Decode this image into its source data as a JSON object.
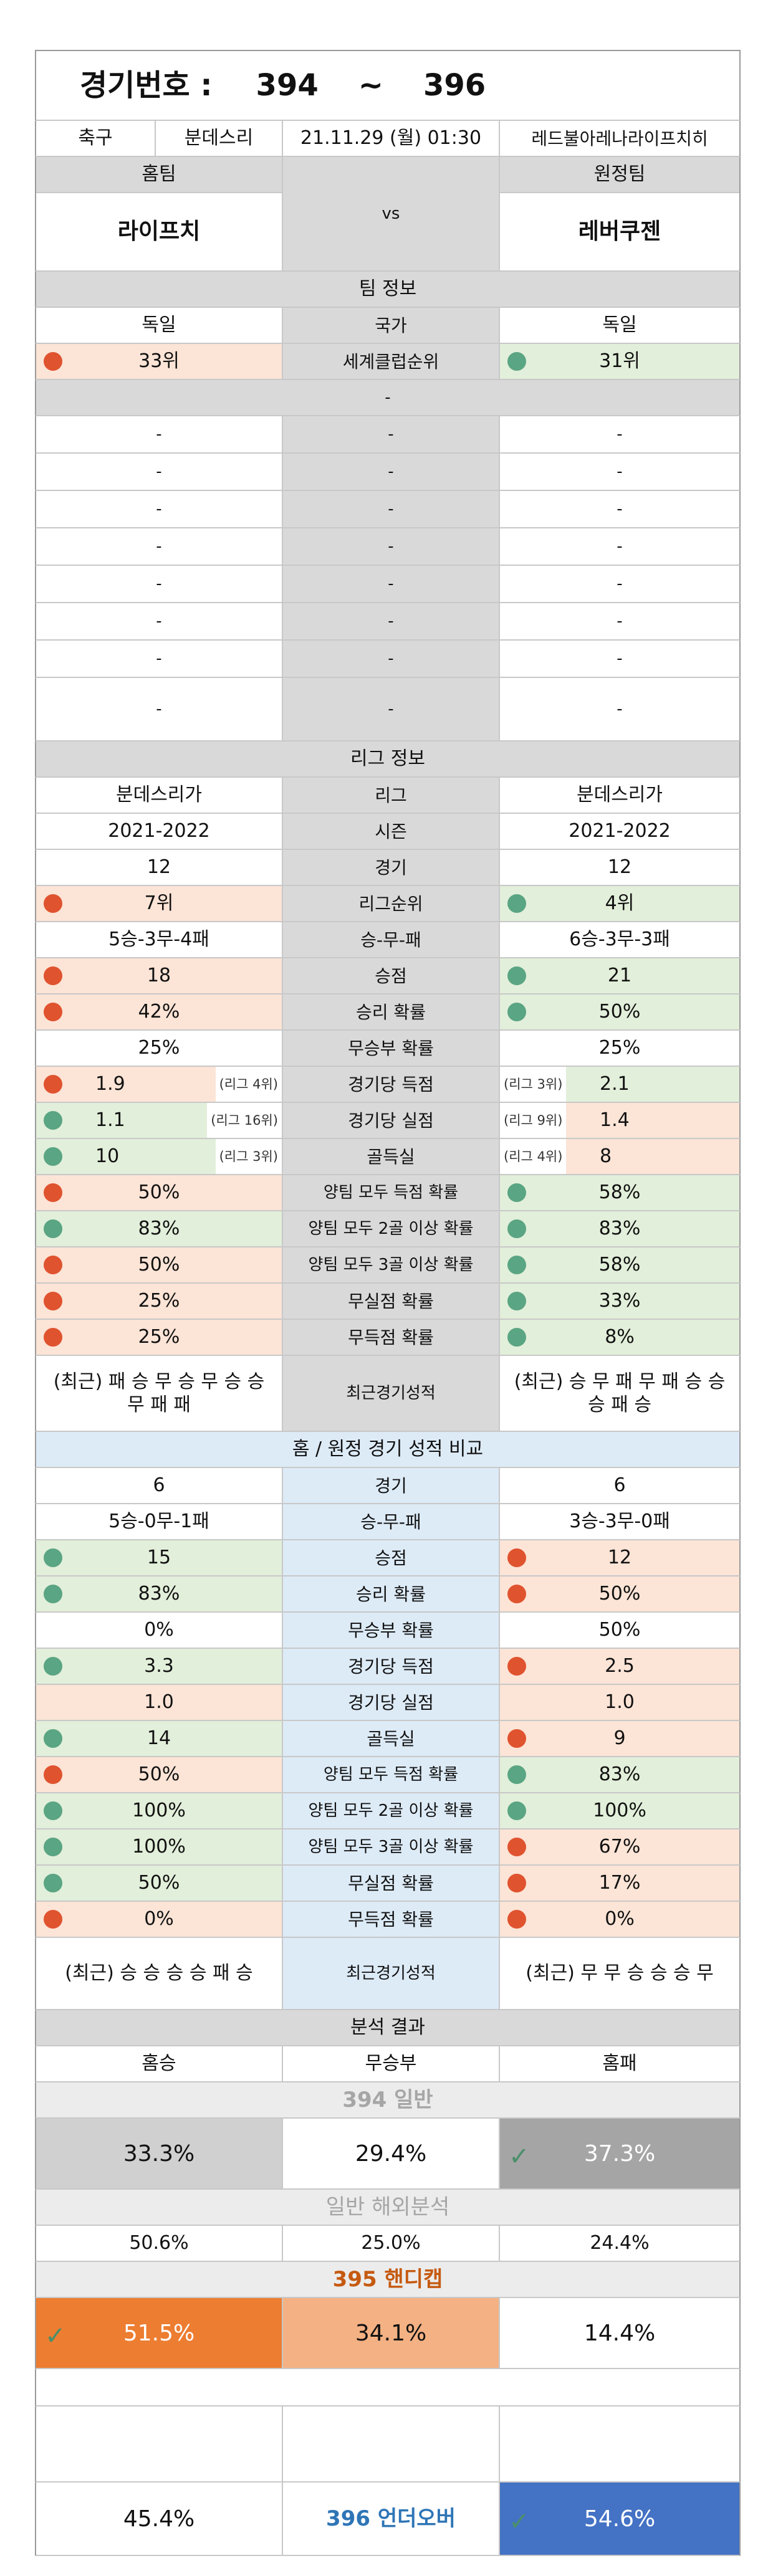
{
  "header": {
    "title": "경기번호 :",
    "num_from": "394",
    "tilde": "~",
    "num_to": "396"
  },
  "match": {
    "sport": "축구",
    "league": "분데스리",
    "datetime": "21.11.29 (월) 01:30",
    "venue": "레드불아레나라이프치히",
    "home_label": "홈팀",
    "away_label": "원정팀",
    "home": "라이프치",
    "vs": "vs",
    "away": "레버쿠젠"
  },
  "team": {
    "title": "팀 정보",
    "home_country": "독일",
    "country_label": "국가",
    "away_country": "독일",
    "home_rank": "33위",
    "rank_label": "세계클럽순위",
    "away_rank": "31위",
    "dash": "-"
  },
  "league": {
    "title": "리그 정보",
    "home_league": "분데스리가",
    "league_label": "리그",
    "away_league": "분데스리가",
    "home_season": "2021-2022",
    "season_label": "시즌",
    "away_season": "2021-2022",
    "rows": [
      {
        "h": "12",
        "k": "경기",
        "a": "12"
      },
      {
        "h": "7위",
        "k": "리그순위",
        "a": "4위",
        "hd": "dr",
        "ad": "dg",
        "hb": "pk",
        "ab": "gr"
      },
      {
        "h": "5승-3무-4패",
        "k": "승-무-패",
        "a": "6승-3무-3패"
      },
      {
        "h": "18",
        "k": "승점",
        "a": "21",
        "hd": "dr",
        "ad": "dg",
        "hb": "pk",
        "ab": "gr"
      },
      {
        "h": "42%",
        "k": "승리 확률",
        "a": "50%",
        "hd": "dr",
        "ad": "dg",
        "hb": "pk",
        "ab": "gr"
      },
      {
        "h": "25%",
        "k": "무승부 확률",
        "a": "25%"
      },
      {
        "h": "1.9",
        "k": "경기당 득점",
        "a": "2.1",
        "hd": "dr",
        "ad": "dg",
        "hb": "pk",
        "ab": "gr",
        "hs": "(리그 4위)",
        "as": "(리그 3위)"
      },
      {
        "h": "1.1",
        "k": "경기당 실점",
        "a": "1.4",
        "hd": "dg",
        "ad": "dr",
        "hb": "gr",
        "ab": "pk",
        "hs": "(리그 16위)",
        "as": "(리그 9위)"
      },
      {
        "h": "10",
        "k": "골득실",
        "a": "8",
        "hd": "dg",
        "ad": "dr",
        "hb": "gr",
        "ab": "pk",
        "hs": "(리그 3위)",
        "as": "(리그 4위)"
      },
      {
        "h": "50%",
        "k": "양팀 모두 득점 확률",
        "a": "58%",
        "hd": "dr",
        "ad": "dg",
        "hb": "pk",
        "ab": "gr"
      },
      {
        "h": "83%",
        "k": "양팀 모두 2골 이상 확률",
        "a": "83%",
        "hd": "dg",
        "ad": "dg",
        "hb": "gr",
        "ab": "gr"
      },
      {
        "h": "50%",
        "k": "양팀 모두 3골 이상 확률",
        "a": "58%",
        "hd": "dr",
        "ad": "dg",
        "hb": "pk",
        "ab": "gr"
      },
      {
        "h": "25%",
        "k": "무실점 확률",
        "a": "33%",
        "hd": "dr",
        "ad": "dg",
        "hb": "pk",
        "ab": "gr"
      },
      {
        "h": "25%",
        "k": "무득점 확률",
        "a": "8%",
        "hd": "dr",
        "ad": "dg",
        "hb": "pk",
        "ab": "gr"
      }
    ],
    "recent_home": "(최근) 패 승 무 승 무 승 승 무 패 패",
    "recent_label": "최근경기성적",
    "recent_away": "(최근) 승 무 패 무 패 승 승 승 패 승"
  },
  "homeaway": {
    "title": "홈 / 원정 경기 성적 비교",
    "rows": [
      {
        "h": "6",
        "k": "경기",
        "a": "6"
      },
      {
        "h": "5승-0무-1패",
        "k": "승-무-패",
        "a": "3승-3무-0패"
      },
      {
        "h": "15",
        "k": "승점",
        "a": "12",
        "hd": "dg",
        "ad": "dr",
        "hb": "gr",
        "ab": "pk"
      },
      {
        "h": "83%",
        "k": "승리 확률",
        "a": "50%",
        "hd": "dg",
        "ad": "dr",
        "hb": "gr",
        "ab": "pk"
      },
      {
        "h": "0%",
        "k": "무승부 확률",
        "a": "50%"
      },
      {
        "h": "3.3",
        "k": "경기당 득점",
        "a": "2.5",
        "hd": "dg",
        "ad": "dr",
        "hb": "gr",
        "ab": "pk"
      },
      {
        "h": "1.0",
        "k": "경기당 실점",
        "a": "1.0",
        "hb": "pk",
        "ab": "pk"
      },
      {
        "h": "14",
        "k": "골득실",
        "a": "9",
        "hd": "dg",
        "ad": "dr",
        "hb": "gr",
        "ab": "pk"
      },
      {
        "h": "50%",
        "k": "양팀 모두 득점 확률",
        "a": "83%",
        "hd": "dr",
        "ad": "dg",
        "hb": "pk",
        "ab": "gr"
      },
      {
        "h": "100%",
        "k": "양팀 모두 2골 이상 확률",
        "a": "100%",
        "hd": "dg",
        "ad": "dg",
        "hb": "gr",
        "ab": "gr"
      },
      {
        "h": "100%",
        "k": "양팀 모두 3골 이상 확률",
        "a": "67%",
        "hd": "dg",
        "ad": "dr",
        "hb": "gr",
        "ab": "pk"
      },
      {
        "h": "50%",
        "k": "무실점 확률",
        "a": "17%",
        "hd": "dg",
        "ad": "dr",
        "hb": "gr",
        "ab": "pk"
      },
      {
        "h": "0%",
        "k": "무득점 확률",
        "a": "0%",
        "hd": "dr",
        "ad": "dr",
        "hb": "pk",
        "ab": "pk"
      }
    ],
    "recent_home": "(최근) 승 승 승 승 패 승",
    "recent_label": "최근경기성적",
    "recent_away": "(최근) 무 무 승 승 승 무"
  },
  "analysis": {
    "title": "분석 결과",
    "home_win": "홈승",
    "draw": "무승부",
    "home_loss": "홈패",
    "s394": "394 일반",
    "p394_h": "33.3%",
    "p394_d": "29.4%",
    "p394_a": "37.3%",
    "overseas": "일반 해외분석",
    "ov_h": "50.6%",
    "ov_d": "25.0%",
    "ov_a": "24.4%",
    "s395": "395 핸디캡",
    "p395_h": "51.5%",
    "p395_d": "34.1%",
    "p395_a": "14.4%",
    "p396_under": "45.4%",
    "s396": "396 언더오버",
    "p396_over": "54.6%"
  },
  "colors": {
    "orange": "#ed7d31",
    "light_orange": "#f4b183",
    "gray": "#a5a5a5",
    "light_gray": "#d0d0d0",
    "blue": "#4472c4",
    "section_blue": "#ddebf7",
    "red_dot": "#e0532f",
    "green_dot": "#5aa583"
  }
}
